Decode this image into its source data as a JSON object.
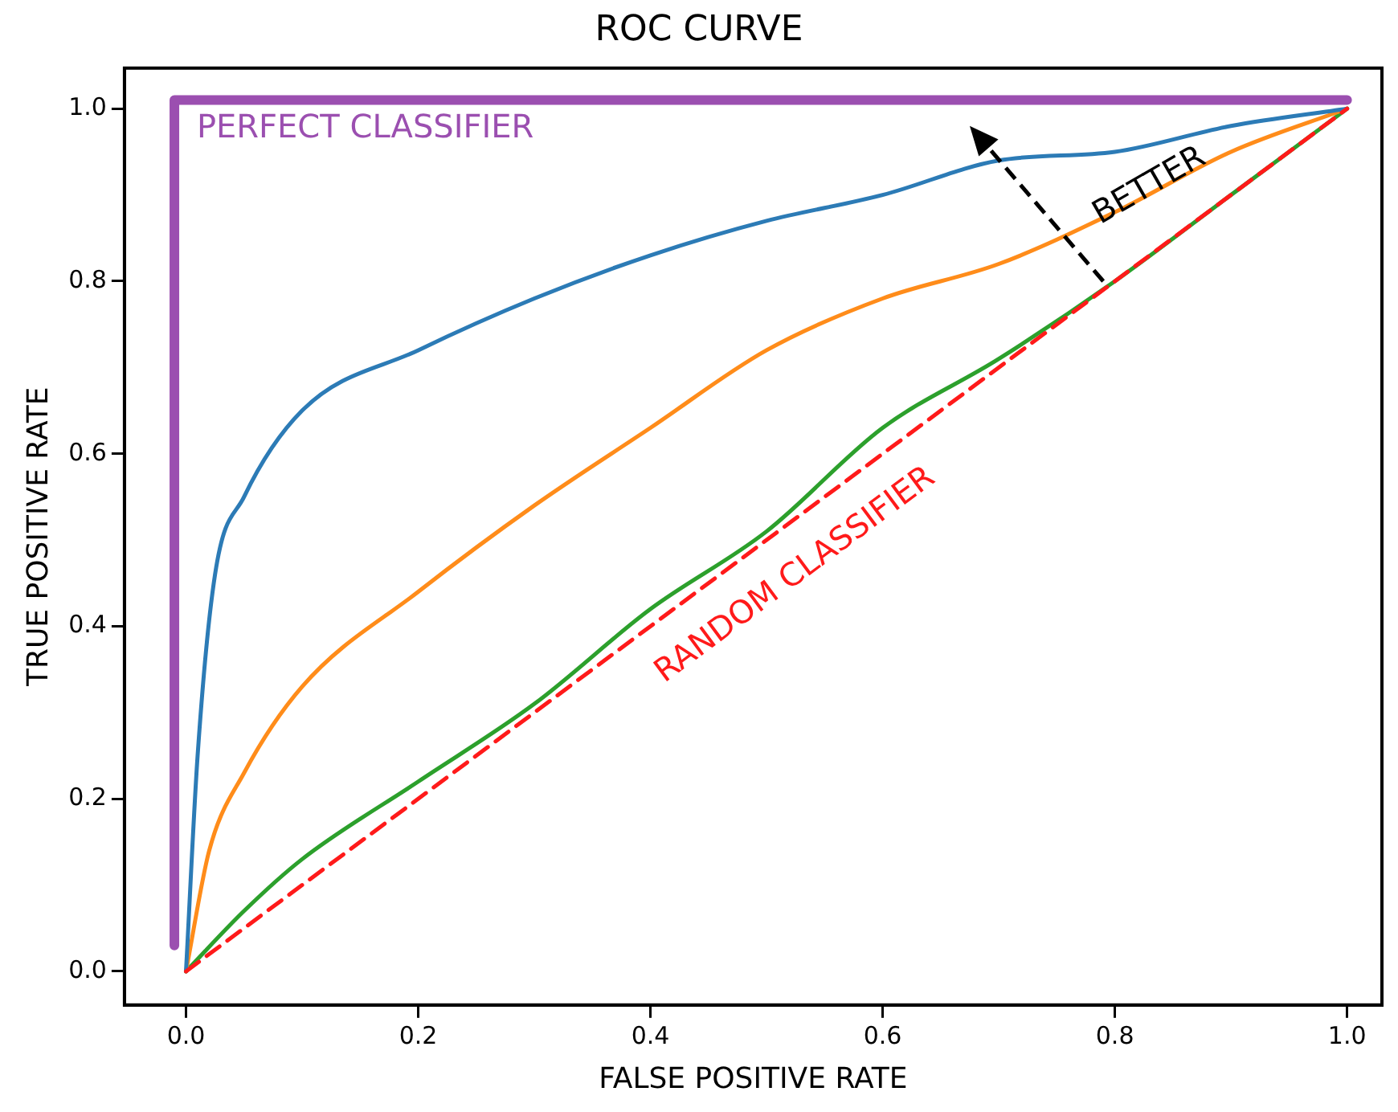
{
  "chart_data": {
    "type": "line",
    "title": "ROC CURVE",
    "xlabel": "FALSE POSITIVE RATE",
    "ylabel": "TRUE POSITIVE RATE",
    "xlim": [
      -0.053,
      1.03
    ],
    "ylim": [
      -0.039,
      1.047
    ],
    "xticks": [
      {
        "value": 0,
        "label": "0.0"
      },
      0.2,
      0.4,
      0.6,
      0.8,
      {
        "value": 1,
        "label": "1.0"
      }
    ],
    "yticks": [
      {
        "value": 0,
        "label": "0.0"
      },
      0.2,
      0.4,
      0.6,
      0.8,
      {
        "value": 1,
        "label": "1.0"
      }
    ],
    "grid": false,
    "legend": false,
    "marker": "none",
    "series": [
      {
        "color": "#9b4fb0",
        "x": [
          -0.01,
          -0.01,
          1
        ],
        "values": [
          0.03,
          1.01,
          1.01
        ]
      },
      {
        "color": "#ff1a1a",
        "line_style": "dashed",
        "x": [
          0,
          1
        ],
        "values": [
          0,
          1
        ]
      },
      {
        "color": "#2c7bb6",
        "x": [
          0,
          0.01,
          0.025,
          0.05,
          0.1,
          0.2,
          0.3,
          0.4,
          0.5,
          0.6,
          0.7,
          0.8,
          0.9,
          1
        ],
        "values": [
          0,
          0.25,
          0.46,
          0.55,
          0.65,
          0.72,
          0.78,
          0.83,
          0.87,
          0.9,
          0.94,
          0.95,
          0.98,
          1
        ]
      },
      {
        "color": "#ff8c1a",
        "x": [
          0,
          0.02,
          0.05,
          0.1,
          0.2,
          0.3,
          0.4,
          0.5,
          0.6,
          0.7,
          0.8,
          0.9,
          1
        ],
        "values": [
          0,
          0.14,
          0.23,
          0.33,
          0.44,
          0.54,
          0.63,
          0.72,
          0.78,
          0.82,
          0.88,
          0.95,
          1
        ]
      },
      {
        "color": "#2ca02c",
        "x": [
          0,
          0.05,
          0.1,
          0.2,
          0.3,
          0.4,
          0.5,
          0.6,
          0.7,
          0.8,
          0.9,
          1
        ],
        "values": [
          0,
          0.07,
          0.13,
          0.22,
          0.31,
          0.42,
          0.51,
          0.63,
          0.71,
          0.8,
          0.9,
          1
        ]
      }
    ],
    "annotations": [
      "PERFECT CLASSIFIER",
      "RANDOM CLASSIFIER",
      {
        "text": "BETTER",
        "x": 0.83,
        "y": 0.91
      }
    ]
  }
}
